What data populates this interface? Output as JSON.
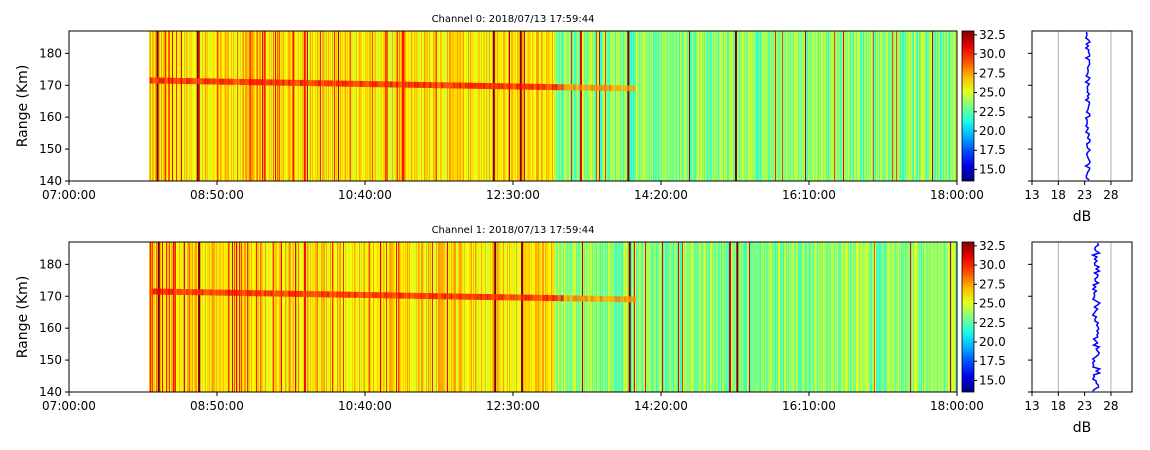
{
  "chart_data": [
    {
      "type": "heatmap",
      "title": "Channel 0: 2018/07/13 17:59:44",
      "ylabel": "Range (Km)",
      "xlim": [
        "07:00:00",
        "18:00:00"
      ],
      "x_ticks": [
        "07:00:00",
        "08:50:00",
        "10:40:00",
        "12:30:00",
        "14:20:00",
        "16:10:00",
        "18:00:00"
      ],
      "ylim": [
        140,
        187
      ],
      "y_ticks": [
        140,
        150,
        160,
        170,
        180
      ],
      "data_start": "08:00:00",
      "colorbar": {
        "colormap": "jet",
        "range": [
          13.5,
          33
        ],
        "ticks": [
          "15.0",
          "17.5",
          "20.0",
          "22.5",
          "25.0",
          "27.5",
          "30.0",
          "32.5"
        ]
      },
      "echo_layer": {
        "range_km": 170,
        "start": "08:00:00",
        "end": "14:00:00"
      },
      "profile": {
        "xlabel": "dB",
        "xlim": [
          13,
          32
        ],
        "x_ticks": [
          13,
          18,
          23,
          28
        ],
        "grid_lines": [
          18,
          28
        ],
        "line_color": "#0000ff",
        "mean_db": 23.6
      }
    },
    {
      "type": "heatmap",
      "title": "Channel 1: 2018/07/13 17:59:44",
      "ylabel": "Range (Km)",
      "xlim": [
        "07:00:00",
        "18:00:00"
      ],
      "x_ticks": [
        "07:00:00",
        "08:50:00",
        "10:40:00",
        "12:30:00",
        "14:20:00",
        "16:10:00",
        "18:00:00"
      ],
      "ylim": [
        140,
        187
      ],
      "y_ticks": [
        140,
        150,
        160,
        170,
        180
      ],
      "data_start": "08:00:00",
      "colorbar": {
        "colormap": "jet",
        "range": [
          13.5,
          33
        ],
        "ticks": [
          "15.0",
          "17.5",
          "20.0",
          "22.5",
          "25.0",
          "27.5",
          "30.0",
          "32.5"
        ]
      },
      "echo_layer": {
        "range_km": 170,
        "start": "08:00:00",
        "end": "14:00:00"
      },
      "profile": {
        "xlabel": "dB",
        "xlim": [
          13,
          32
        ],
        "x_ticks": [
          13,
          18,
          23,
          28
        ],
        "grid_lines": [
          18,
          28
        ],
        "line_color": "#0000ff",
        "mean_db": 25.2
      }
    }
  ]
}
